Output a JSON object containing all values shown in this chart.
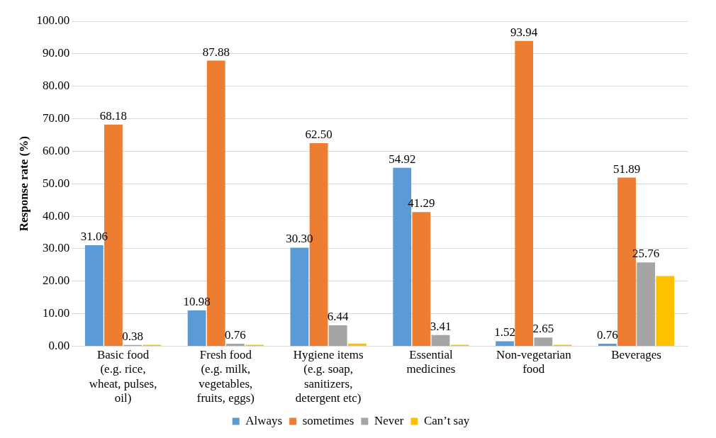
{
  "chart_data": {
    "type": "bar",
    "ylabel": "Response rate (%)",
    "categories": [
      "Basic food (e.g. rice, wheat, pulses, oil)",
      "Fresh food (e.g. milk, vegetables, fruits, eggs)",
      "Hygiene items (e.g. soap, sanitizers, detergent etc)",
      "Essential medicines",
      "Non-vegetarian food",
      "Beverages"
    ],
    "series": [
      {
        "name": "Always",
        "color": "#5b9bd5",
        "values": [
          31.06,
          10.98,
          30.3,
          54.92,
          1.52,
          0.76
        ],
        "value_labels": [
          "31.06",
          "10.98",
          "30.30",
          "54.92",
          "1.52",
          "0.76"
        ]
      },
      {
        "name": "sometimes",
        "color": "#ed7d31",
        "values": [
          68.18,
          87.88,
          62.5,
          41.29,
          93.94,
          51.89
        ],
        "value_labels": [
          "68.18",
          "87.88",
          "62.50",
          "41.29",
          "93.94",
          "51.89"
        ]
      },
      {
        "name": "Never",
        "color": "#a5a5a5",
        "values": [
          0.38,
          0.76,
          6.44,
          3.41,
          2.65,
          25.76
        ],
        "value_labels": [
          "0.38",
          "0.76",
          "6.44",
          "3.41",
          "2.65",
          "25.76"
        ]
      },
      {
        "name": "Can’t say",
        "color": "#ffc000",
        "values": [
          0.4,
          0.4,
          0.8,
          0.4,
          0.4,
          21.6
        ]
      }
    ],
    "ylim": [
      0,
      100
    ],
    "yticks": [
      {
        "value": 0,
        "label": "0.00"
      },
      {
        "value": 10,
        "label": "10.00"
      },
      {
        "value": 20,
        "label": "20.00"
      },
      {
        "value": 30,
        "label": "30.00"
      },
      {
        "value": 40,
        "label": "40.00"
      },
      {
        "value": 50,
        "label": "50.00"
      },
      {
        "value": 60,
        "label": "60.00"
      },
      {
        "value": 70,
        "label": "70.00"
      },
      {
        "value": 80,
        "label": "80.00"
      },
      {
        "value": 90,
        "label": "90.00"
      },
      {
        "value": 100,
        "label": "100.00"
      }
    ],
    "grid": "y",
    "legend": "bottom"
  }
}
